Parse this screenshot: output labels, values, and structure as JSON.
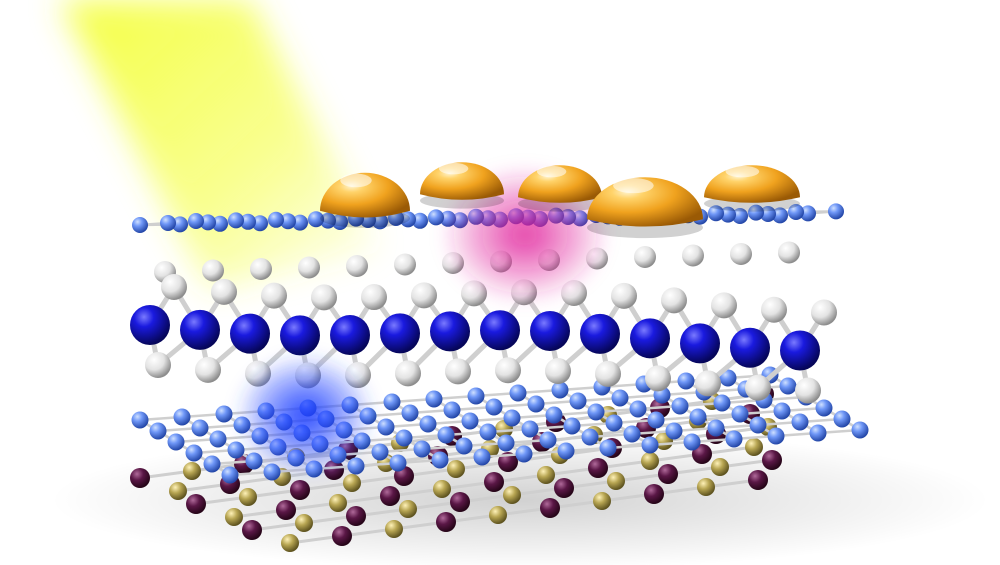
{
  "scene": {
    "subject": "layered-atomic-heterostructure",
    "colors": {
      "background": "#ffffff",
      "light_beam": "#f4ff3a",
      "gold_nanoparticle": "#f0a21e",
      "graphene_atom": "#4f7df0",
      "large_blue_atom": "#1515c8",
      "white_atom": "#e8e8e8",
      "dark_purple_atom": "#5a1746",
      "khaki_atom": "#b7a552",
      "magenta_glow": "#e01f9a",
      "blue_glow": "#1f3cff",
      "bond": "#cfcfcf"
    },
    "counts": {
      "gold_nanoparticles": 5
    }
  }
}
